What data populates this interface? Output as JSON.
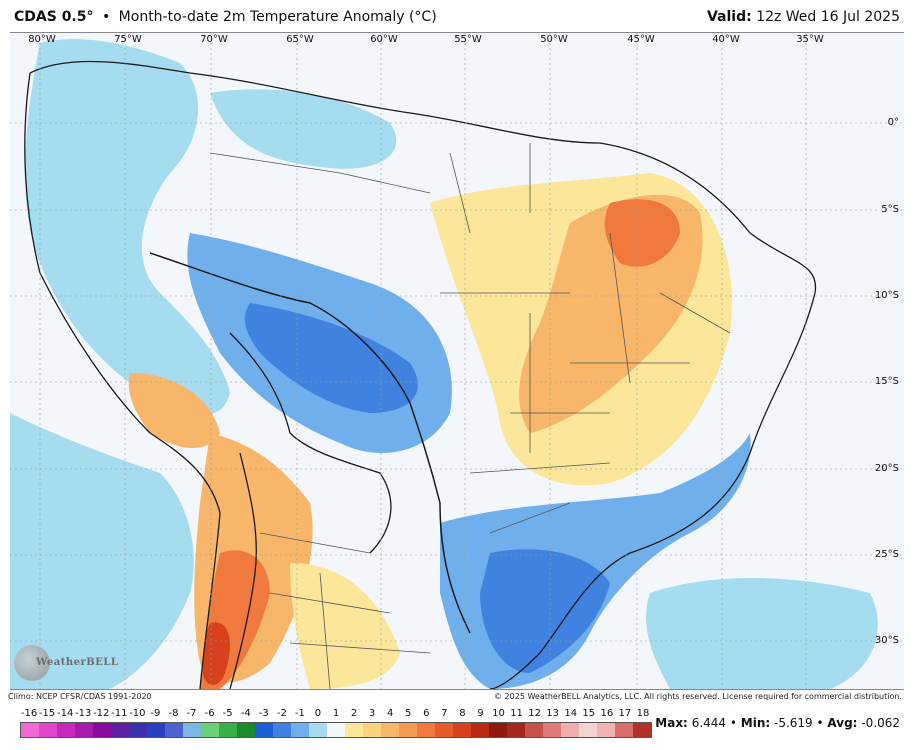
{
  "header": {
    "model": "CDAS 0.5°",
    "separator": "•",
    "title": "Month-to-date 2m Temperature Anomaly (°C)",
    "valid_label": "Valid:",
    "valid_value": "12z Wed 16 Jul 2025"
  },
  "map": {
    "lon_labels": [
      "80°W",
      "75°W",
      "70°W",
      "65°W",
      "60°W",
      "55°W",
      "50°W",
      "45°W",
      "40°W",
      "35°W"
    ],
    "lat_labels": [
      "0°",
      "5°S",
      "10°S",
      "15°S",
      "20°S",
      "25°S",
      "30°S"
    ],
    "logo_text": "WeatherBELL",
    "colors": {
      "background": "#f3f6fb",
      "cold_light": "#a6dcf0",
      "cold_mid": "#6fb0ec",
      "cold_strong": "#3f82e0",
      "cold_max": "#1d5fd6",
      "warm_light": "#fbe69a",
      "warm_mid": "#f8b66a",
      "warm_strong": "#f07a3e",
      "warm_max": "#d6421e",
      "border": "#1a1a1a",
      "state_line": "#555555"
    }
  },
  "footer": {
    "climo": "Climo: NCEP CFSR/CDAS 1991-2020",
    "copyright": "© 2025 WeatherBELL Analytics, LLC. All rights reserved. License required for commercial distribution."
  },
  "colorbar": {
    "labels": [
      "-16",
      "-15",
      "-14",
      "-13",
      "-12",
      "-11",
      "-10",
      "-9",
      "-8",
      "-7",
      "-6",
      "-5",
      "-4",
      "-3",
      "-2",
      "-1",
      "0",
      "1",
      "2",
      "3",
      "4",
      "5",
      "6",
      "7",
      "8",
      "9",
      "10",
      "11",
      "12",
      "13",
      "14",
      "15",
      "16",
      "17",
      "18"
    ],
    "colors": [
      "#f06ad6",
      "#e048cc",
      "#c829bd",
      "#a819ae",
      "#8a0a9f",
      "#5e1fa3",
      "#3b2fae",
      "#2a3fc0",
      "#4a63cf",
      "#7ab8e2",
      "#6ad07a",
      "#38b04a",
      "#1d8a2c",
      "#1d5fd6",
      "#3f82e0",
      "#6fb0ec",
      "#a6dcf0",
      "#f3f6fb",
      "#fbe69a",
      "#fbd27e",
      "#f8b66a",
      "#f59a53",
      "#f07a3e",
      "#e55b2b",
      "#d6421e",
      "#b82a14",
      "#8f190d",
      "#a2271f",
      "#c7524a",
      "#e07a7a",
      "#eeaeae",
      "#f6d3d3",
      "#f2b3b0",
      "#d96f6a",
      "#b3312d"
    ]
  },
  "stats": {
    "max_label": "Max:",
    "max": "6.444",
    "min_label": "Min:",
    "min": "-5.619",
    "avg_label": "Avg:",
    "avg": "-0.062"
  }
}
